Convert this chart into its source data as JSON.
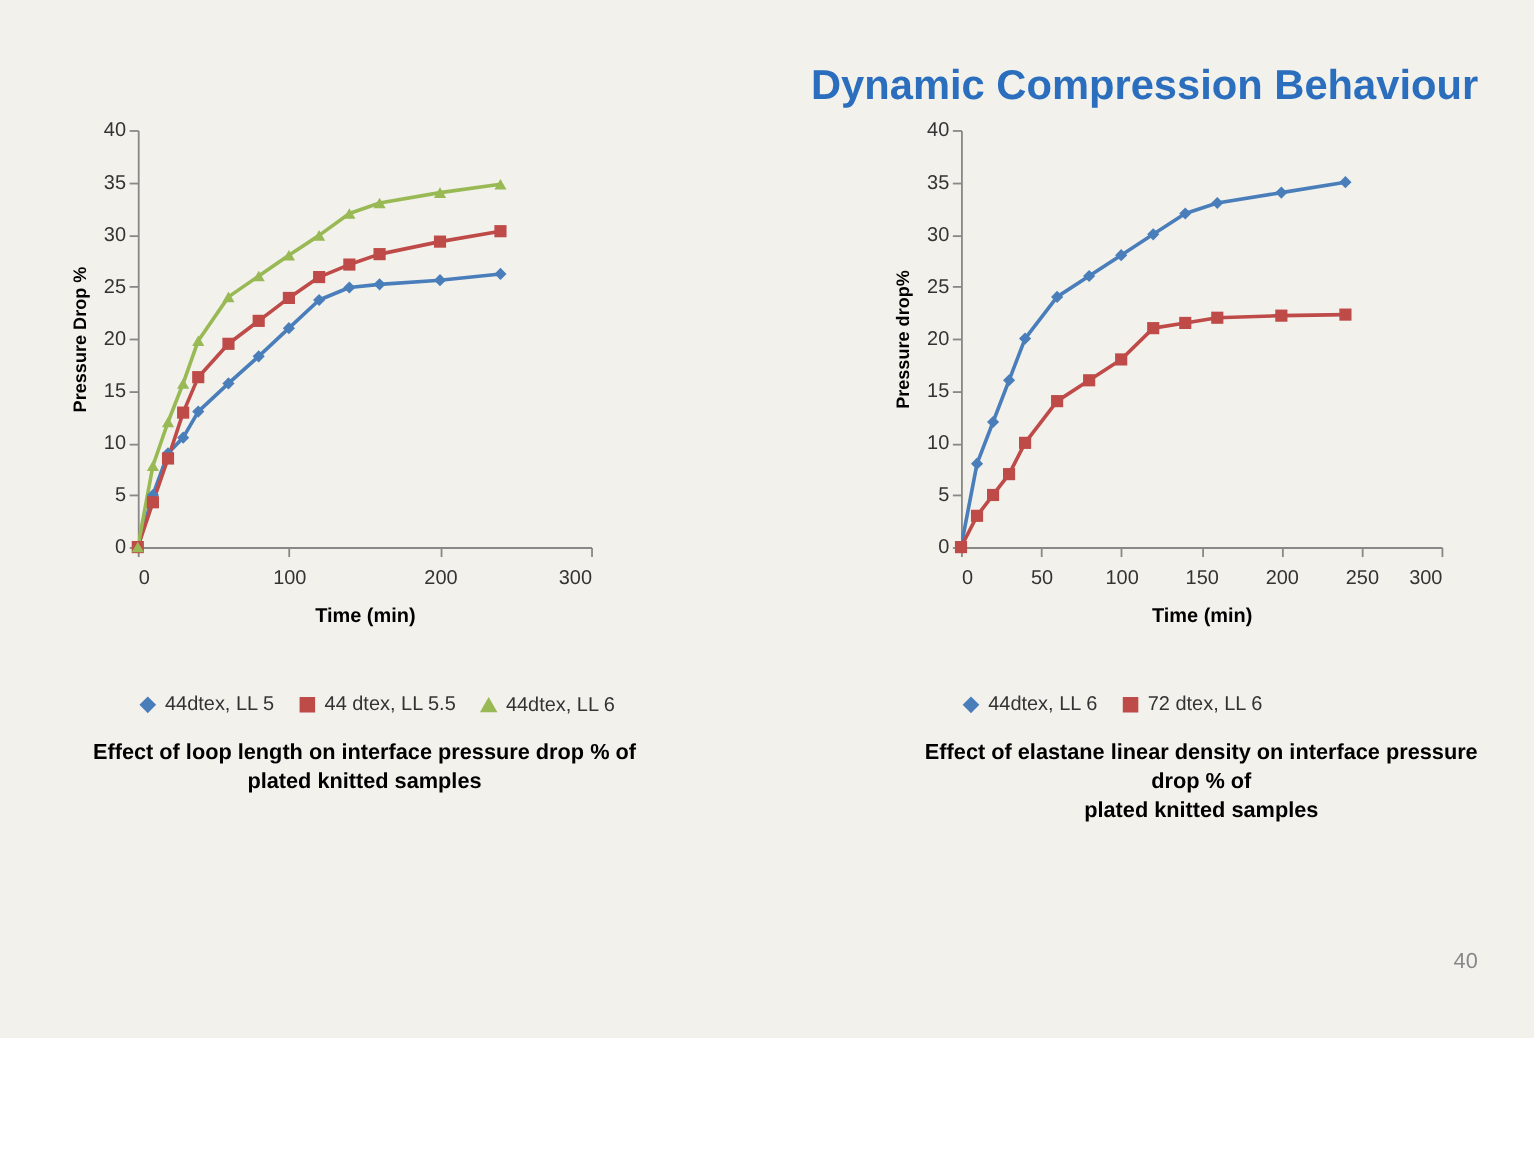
{
  "chart_data": [
    {
      "type": "line",
      "xlabel": "Time (min)",
      "ylabel": "Pressure Drop %",
      "x": [
        0,
        10,
        20,
        30,
        40,
        60,
        80,
        100,
        120,
        140,
        160,
        200,
        240
      ],
      "xlim": [
        0,
        300
      ],
      "xticks": [
        0,
        100,
        200,
        300
      ],
      "ylim": [
        0,
        40
      ],
      "yticks": [
        0,
        5,
        10,
        15,
        20,
        25,
        30,
        35,
        40
      ],
      "grid": false,
      "legend": "bottom",
      "line_style": "solid",
      "series": [
        {
          "name": "44dtex, LL 5",
          "color": "#4a7ebb",
          "marker": "diamond",
          "values": [
            0,
            5,
            9,
            10.5,
            13,
            15.7,
            18.3,
            21,
            23.7,
            24.9,
            25.2,
            25.6,
            26.2
          ]
        },
        {
          "name": "44 dtex, LL 5.5",
          "color": "#be4b48",
          "marker": "square",
          "values": [
            0,
            4.3,
            8.5,
            12.9,
            16.3,
            19.5,
            21.7,
            23.9,
            25.9,
            27.1,
            28.1,
            29.3,
            30.3
          ]
        },
        {
          "name": "44dtex, LL 6",
          "color": "#98b954",
          "marker": "triangle",
          "values": [
            0,
            7.8,
            12,
            15.7,
            19.8,
            24,
            26,
            28,
            29.9,
            32,
            33,
            34,
            34.8
          ]
        }
      ],
      "annotations": [
        "Effect of loop length on interface pressure drop % of\nplated knitted samples"
      ]
    },
    {
      "type": "line",
      "title": "Dynamic Compression Behaviour",
      "xlabel": "Time (min)",
      "ylabel": "Pressure drop%",
      "x": [
        0,
        10,
        20,
        30,
        40,
        60,
        80,
        100,
        120,
        140,
        160,
        200,
        240
      ],
      "xlim": [
        0,
        300
      ],
      "xticks": [
        0,
        50,
        100,
        150,
        200,
        250,
        300
      ],
      "ylim": [
        0,
        40
      ],
      "yticks": [
        0,
        5,
        10,
        15,
        20,
        25,
        30,
        35,
        40
      ],
      "grid": false,
      "legend": "bottom",
      "line_style": "solid",
      "series": [
        {
          "name": "44dtex, LL 6",
          "color": "#4a7ebb",
          "marker": "diamond",
          "values": [
            0,
            8,
            12,
            16,
            20,
            24,
            26,
            28,
            30,
            32,
            33,
            34,
            35
          ]
        },
        {
          "name": "72 dtex, LL 6",
          "color": "#be4b48",
          "marker": "square",
          "values": [
            0,
            3,
            5,
            7,
            10,
            14,
            16,
            18,
            21,
            21.5,
            22,
            22.2,
            22.3
          ]
        }
      ],
      "annotations": [
        "Effect of elastane linear density on interface pressure\ndrop % of\nplated knitted samples",
        "40"
      ]
    }
  ]
}
